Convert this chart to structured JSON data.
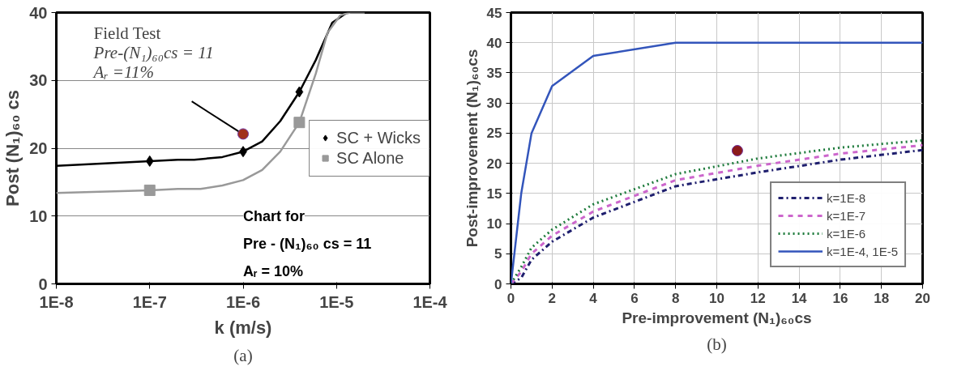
{
  "chart_data": [
    {
      "type": "line",
      "xlabel": "k (m/s)",
      "ylabel": "Post (N₁)₆₀ cs",
      "log": "x",
      "xlim": [
        1e-08,
        0.0001
      ],
      "ylim": [
        0,
        40
      ],
      "xticks": [
        {
          "value": 1e-08,
          "label": "1E-8"
        },
        {
          "value": 1e-07,
          "label": "1E-7"
        },
        {
          "value": 1e-06,
          "label": "1E-6"
        },
        {
          "value": 1e-05,
          "label": "1E-5"
        },
        {
          "value": 0.0001,
          "label": "1E-4"
        }
      ],
      "yticks": [
        0,
        10,
        20,
        30,
        40
      ],
      "grid": "y",
      "legend": "right",
      "series": [
        {
          "color": "#000000",
          "x": [
            1e-08,
            1e-07,
            2e-07,
            3e-07,
            6e-07,
            1e-06,
            1.6e-06,
            2.5e-06,
            4e-06,
            6e-06,
            9e-06,
            1.3e-05,
            1.5e-05,
            2e-05
          ],
          "values": [
            17.4,
            18.1,
            18.3,
            18.3,
            18.7,
            19.5,
            21,
            24,
            28.3,
            33,
            38.5,
            40,
            40,
            40
          ]
        },
        {
          "type": "scatter",
          "name": "SC + Wicks",
          "marker": "diamond",
          "color": "#000000",
          "x": [
            1e-07,
            1e-06,
            4e-06
          ],
          "values": [
            18.1,
            19.5,
            28.3
          ]
        },
        {
          "color": "#999999",
          "x": [
            1e-08,
            1e-07,
            2e-07,
            3.5e-07,
            6e-07,
            1e-06,
            1.6e-06,
            2.5e-06,
            4e-06,
            6e-06,
            8e-06,
            1.1e-05,
            1.4e-05,
            2e-05
          ],
          "values": [
            13.4,
            13.8,
            14,
            14,
            14.5,
            15.3,
            16.8,
            19.5,
            23.8,
            31,
            37,
            39.6,
            40,
            40
          ]
        },
        {
          "type": "scatter",
          "name": "SC Alone",
          "marker": "square",
          "color": "#999999",
          "x": [
            1e-07,
            4e-06
          ],
          "values": [
            13.8,
            23.8
          ]
        },
        {
          "type": "scatter",
          "marker": "circle",
          "color": "#a0301c",
          "x": [
            1e-06
          ],
          "values": [
            22.1
          ]
        }
      ],
      "annotations": [
        {
          "text": "Field Test\nPre-(N₁)₆₀cs = 11\nAᵣ =11%",
          "x": 1e-06,
          "y": 22.1
        },
        "Chart for",
        "Pre - (N₁)₆₀ cs = 11",
        "Aᵣ = 10%",
        "(a)"
      ]
    },
    {
      "type": "line",
      "xlabel": "Pre-improvement (N₁)₆₀cs",
      "ylabel": "Post-improvement (N₁)₆₀cs",
      "xlim": [
        0,
        20
      ],
      "ylim": [
        0,
        45
      ],
      "xticks": [
        0,
        2,
        4,
        6,
        8,
        10,
        12,
        14,
        16,
        18,
        20
      ],
      "yticks": [
        0,
        5,
        10,
        15,
        20,
        25,
        30,
        35,
        40,
        45
      ],
      "grid": true,
      "legend": "bottom right",
      "series": [
        {
          "name": "k=1E-8",
          "color": "#1f1f6e",
          "line_style": "dashdot",
          "x": [
            0,
            0.5,
            1,
            2,
            4,
            8,
            12,
            16,
            20
          ],
          "values": [
            0,
            1,
            4,
            7,
            11,
            16.2,
            18.5,
            20.6,
            22.2
          ]
        },
        {
          "name": "k=1E-7",
          "color": "#cc66cc",
          "line_style": "dashed",
          "x": [
            0,
            0.5,
            1,
            2,
            4,
            8,
            12,
            16,
            20
          ],
          "values": [
            0,
            2,
            5,
            8,
            12,
            17.2,
            19.6,
            21.6,
            23
          ]
        },
        {
          "name": "k=1E-6",
          "color": "#1e7b3c",
          "line_style": "dotted",
          "x": [
            0,
            0.5,
            1,
            2,
            4,
            8,
            12,
            16,
            20
          ],
          "values": [
            0,
            2.8,
            6,
            9,
            13.2,
            18.2,
            20.8,
            22.6,
            23.8
          ]
        },
        {
          "name": "k=1E-4, 1E-5",
          "color": "#3355bb",
          "line_style": "solid",
          "x": [
            0,
            0.5,
            1,
            2,
            4,
            8,
            20
          ],
          "values": [
            0,
            15,
            25,
            32.8,
            37.8,
            40,
            40
          ]
        },
        {
          "type": "scatter",
          "marker": "circle",
          "color": "#8b1a1a",
          "x": [
            11
          ],
          "values": [
            22.1
          ]
        }
      ],
      "annotations": [
        "(b)"
      ]
    }
  ]
}
